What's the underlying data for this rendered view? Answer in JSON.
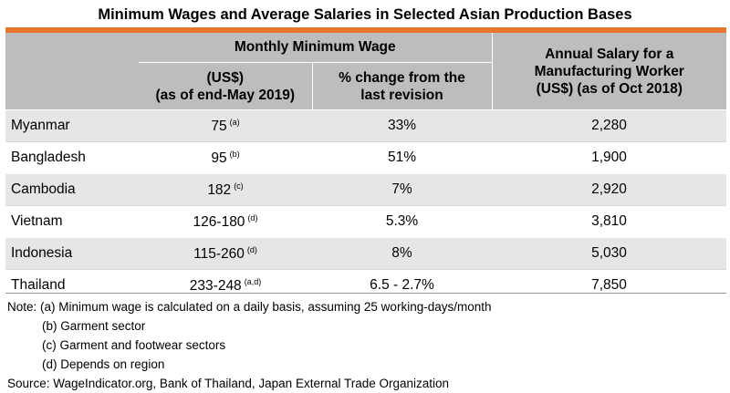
{
  "title": "Minimum Wages and Average Salaries in Selected Asian Production Bases",
  "header": {
    "group_label": "Monthly Minimum Wage",
    "col_usd_line1": "(US$)",
    "col_usd_line2": "(as of end-May 2019)",
    "col_change_line1": "% change from the",
    "col_change_line2": "last revision",
    "col_annual_line1": "Annual Salary for a",
    "col_annual_line2": "Manufacturing Worker",
    "col_annual_line3": "(US$) (as of Oct 2018)"
  },
  "rows": [
    {
      "country": "Myanmar",
      "wage": "75",
      "note": "(a)",
      "change": "33%",
      "salary": "2,280"
    },
    {
      "country": "Bangladesh",
      "wage": "95",
      "note": "(b)",
      "change": "51%",
      "salary": "1,900"
    },
    {
      "country": "Cambodia",
      "wage": "182",
      "note": "(c)",
      "change": "7%",
      "salary": "2,920"
    },
    {
      "country": "Vietnam",
      "wage": "126-180",
      "note": "(d)",
      "change": "5.3%",
      "salary": "3,810"
    },
    {
      "country": "Indonesia",
      "wage": "115-260",
      "note": "(d)",
      "change": "8%",
      "salary": "5,030"
    },
    {
      "country": "Thailand",
      "wage": "233-248",
      "note": "(a,d)",
      "change": "6.5 - 2.7%",
      "salary": "7,850"
    }
  ],
  "notes": {
    "note_a": "Note: (a) Minimum wage is calculated on a daily basis, assuming 25 working-days/month",
    "note_b": "(b) Garment sector",
    "note_c": "(c) Garment and footwear sectors",
    "note_d": "(d) Depends on region",
    "source": "Source: WageIndicator.org, Bank of Thailand, Japan External Trade Organization"
  },
  "colors": {
    "accent_bar": "#E8772E",
    "header_bg": "#BDBDBD",
    "stripe_bg": "#E6E6E6"
  }
}
